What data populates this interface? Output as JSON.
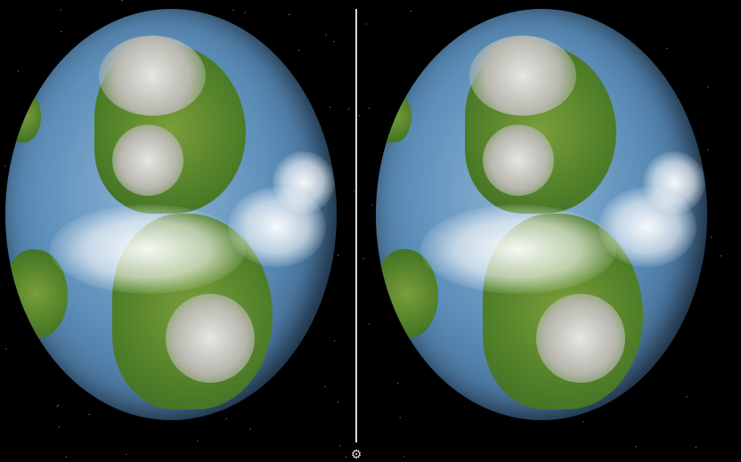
{
  "view": {
    "mode": "stereo-vr",
    "scene": "planet-earth"
  },
  "icons": {
    "settings": "gear-icon"
  },
  "colors": {
    "background": "#000000",
    "divider": "#d8d8d8",
    "ocean": "#5d8fba",
    "land": "#4f7f28"
  }
}
